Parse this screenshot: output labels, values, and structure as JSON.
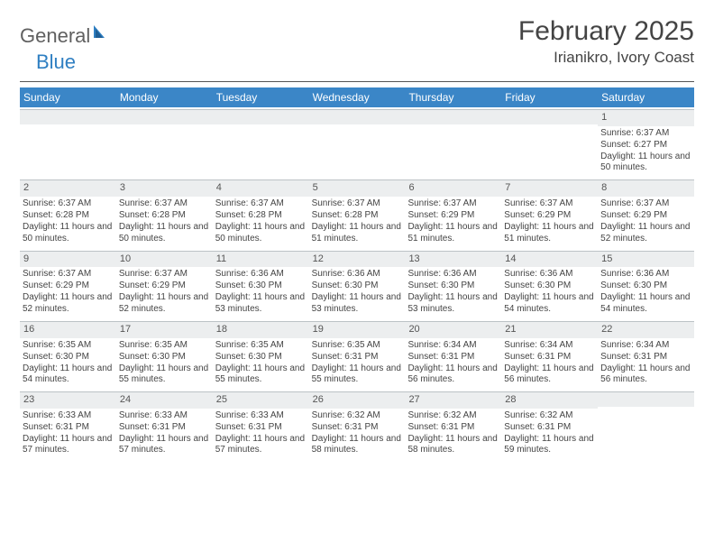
{
  "logo": {
    "text1": "General",
    "text2": "Blue"
  },
  "title": {
    "month": "February 2025",
    "location": "Irianikro, Ivory Coast"
  },
  "colors": {
    "header_bar": "#3b86c7",
    "day_bar_bg": "#eceeef",
    "day_bar_border": "#bcc2c6",
    "logo_blue": "#2f7fc2"
  },
  "weekdays": [
    "Sunday",
    "Monday",
    "Tuesday",
    "Wednesday",
    "Thursday",
    "Friday",
    "Saturday"
  ],
  "weeks": [
    [
      {
        "n": "",
        "sr": "",
        "ss": "",
        "dl": ""
      },
      {
        "n": "",
        "sr": "",
        "ss": "",
        "dl": ""
      },
      {
        "n": "",
        "sr": "",
        "ss": "",
        "dl": ""
      },
      {
        "n": "",
        "sr": "",
        "ss": "",
        "dl": ""
      },
      {
        "n": "",
        "sr": "",
        "ss": "",
        "dl": ""
      },
      {
        "n": "",
        "sr": "",
        "ss": "",
        "dl": ""
      },
      {
        "n": "1",
        "sr": "Sunrise: 6:37 AM",
        "ss": "Sunset: 6:27 PM",
        "dl": "Daylight: 11 hours and 50 minutes."
      }
    ],
    [
      {
        "n": "2",
        "sr": "Sunrise: 6:37 AM",
        "ss": "Sunset: 6:28 PM",
        "dl": "Daylight: 11 hours and 50 minutes."
      },
      {
        "n": "3",
        "sr": "Sunrise: 6:37 AM",
        "ss": "Sunset: 6:28 PM",
        "dl": "Daylight: 11 hours and 50 minutes."
      },
      {
        "n": "4",
        "sr": "Sunrise: 6:37 AM",
        "ss": "Sunset: 6:28 PM",
        "dl": "Daylight: 11 hours and 50 minutes."
      },
      {
        "n": "5",
        "sr": "Sunrise: 6:37 AM",
        "ss": "Sunset: 6:28 PM",
        "dl": "Daylight: 11 hours and 51 minutes."
      },
      {
        "n": "6",
        "sr": "Sunrise: 6:37 AM",
        "ss": "Sunset: 6:29 PM",
        "dl": "Daylight: 11 hours and 51 minutes."
      },
      {
        "n": "7",
        "sr": "Sunrise: 6:37 AM",
        "ss": "Sunset: 6:29 PM",
        "dl": "Daylight: 11 hours and 51 minutes."
      },
      {
        "n": "8",
        "sr": "Sunrise: 6:37 AM",
        "ss": "Sunset: 6:29 PM",
        "dl": "Daylight: 11 hours and 52 minutes."
      }
    ],
    [
      {
        "n": "9",
        "sr": "Sunrise: 6:37 AM",
        "ss": "Sunset: 6:29 PM",
        "dl": "Daylight: 11 hours and 52 minutes."
      },
      {
        "n": "10",
        "sr": "Sunrise: 6:37 AM",
        "ss": "Sunset: 6:29 PM",
        "dl": "Daylight: 11 hours and 52 minutes."
      },
      {
        "n": "11",
        "sr": "Sunrise: 6:36 AM",
        "ss": "Sunset: 6:30 PM",
        "dl": "Daylight: 11 hours and 53 minutes."
      },
      {
        "n": "12",
        "sr": "Sunrise: 6:36 AM",
        "ss": "Sunset: 6:30 PM",
        "dl": "Daylight: 11 hours and 53 minutes."
      },
      {
        "n": "13",
        "sr": "Sunrise: 6:36 AM",
        "ss": "Sunset: 6:30 PM",
        "dl": "Daylight: 11 hours and 53 minutes."
      },
      {
        "n": "14",
        "sr": "Sunrise: 6:36 AM",
        "ss": "Sunset: 6:30 PM",
        "dl": "Daylight: 11 hours and 54 minutes."
      },
      {
        "n": "15",
        "sr": "Sunrise: 6:36 AM",
        "ss": "Sunset: 6:30 PM",
        "dl": "Daylight: 11 hours and 54 minutes."
      }
    ],
    [
      {
        "n": "16",
        "sr": "Sunrise: 6:35 AM",
        "ss": "Sunset: 6:30 PM",
        "dl": "Daylight: 11 hours and 54 minutes."
      },
      {
        "n": "17",
        "sr": "Sunrise: 6:35 AM",
        "ss": "Sunset: 6:30 PM",
        "dl": "Daylight: 11 hours and 55 minutes."
      },
      {
        "n": "18",
        "sr": "Sunrise: 6:35 AM",
        "ss": "Sunset: 6:30 PM",
        "dl": "Daylight: 11 hours and 55 minutes."
      },
      {
        "n": "19",
        "sr": "Sunrise: 6:35 AM",
        "ss": "Sunset: 6:31 PM",
        "dl": "Daylight: 11 hours and 55 minutes."
      },
      {
        "n": "20",
        "sr": "Sunrise: 6:34 AM",
        "ss": "Sunset: 6:31 PM",
        "dl": "Daylight: 11 hours and 56 minutes."
      },
      {
        "n": "21",
        "sr": "Sunrise: 6:34 AM",
        "ss": "Sunset: 6:31 PM",
        "dl": "Daylight: 11 hours and 56 minutes."
      },
      {
        "n": "22",
        "sr": "Sunrise: 6:34 AM",
        "ss": "Sunset: 6:31 PM",
        "dl": "Daylight: 11 hours and 56 minutes."
      }
    ],
    [
      {
        "n": "23",
        "sr": "Sunrise: 6:33 AM",
        "ss": "Sunset: 6:31 PM",
        "dl": "Daylight: 11 hours and 57 minutes."
      },
      {
        "n": "24",
        "sr": "Sunrise: 6:33 AM",
        "ss": "Sunset: 6:31 PM",
        "dl": "Daylight: 11 hours and 57 minutes."
      },
      {
        "n": "25",
        "sr": "Sunrise: 6:33 AM",
        "ss": "Sunset: 6:31 PM",
        "dl": "Daylight: 11 hours and 57 minutes."
      },
      {
        "n": "26",
        "sr": "Sunrise: 6:32 AM",
        "ss": "Sunset: 6:31 PM",
        "dl": "Daylight: 11 hours and 58 minutes."
      },
      {
        "n": "27",
        "sr": "Sunrise: 6:32 AM",
        "ss": "Sunset: 6:31 PM",
        "dl": "Daylight: 11 hours and 58 minutes."
      },
      {
        "n": "28",
        "sr": "Sunrise: 6:32 AM",
        "ss": "Sunset: 6:31 PM",
        "dl": "Daylight: 11 hours and 59 minutes."
      },
      {
        "n": "",
        "sr": "",
        "ss": "",
        "dl": ""
      }
    ]
  ]
}
